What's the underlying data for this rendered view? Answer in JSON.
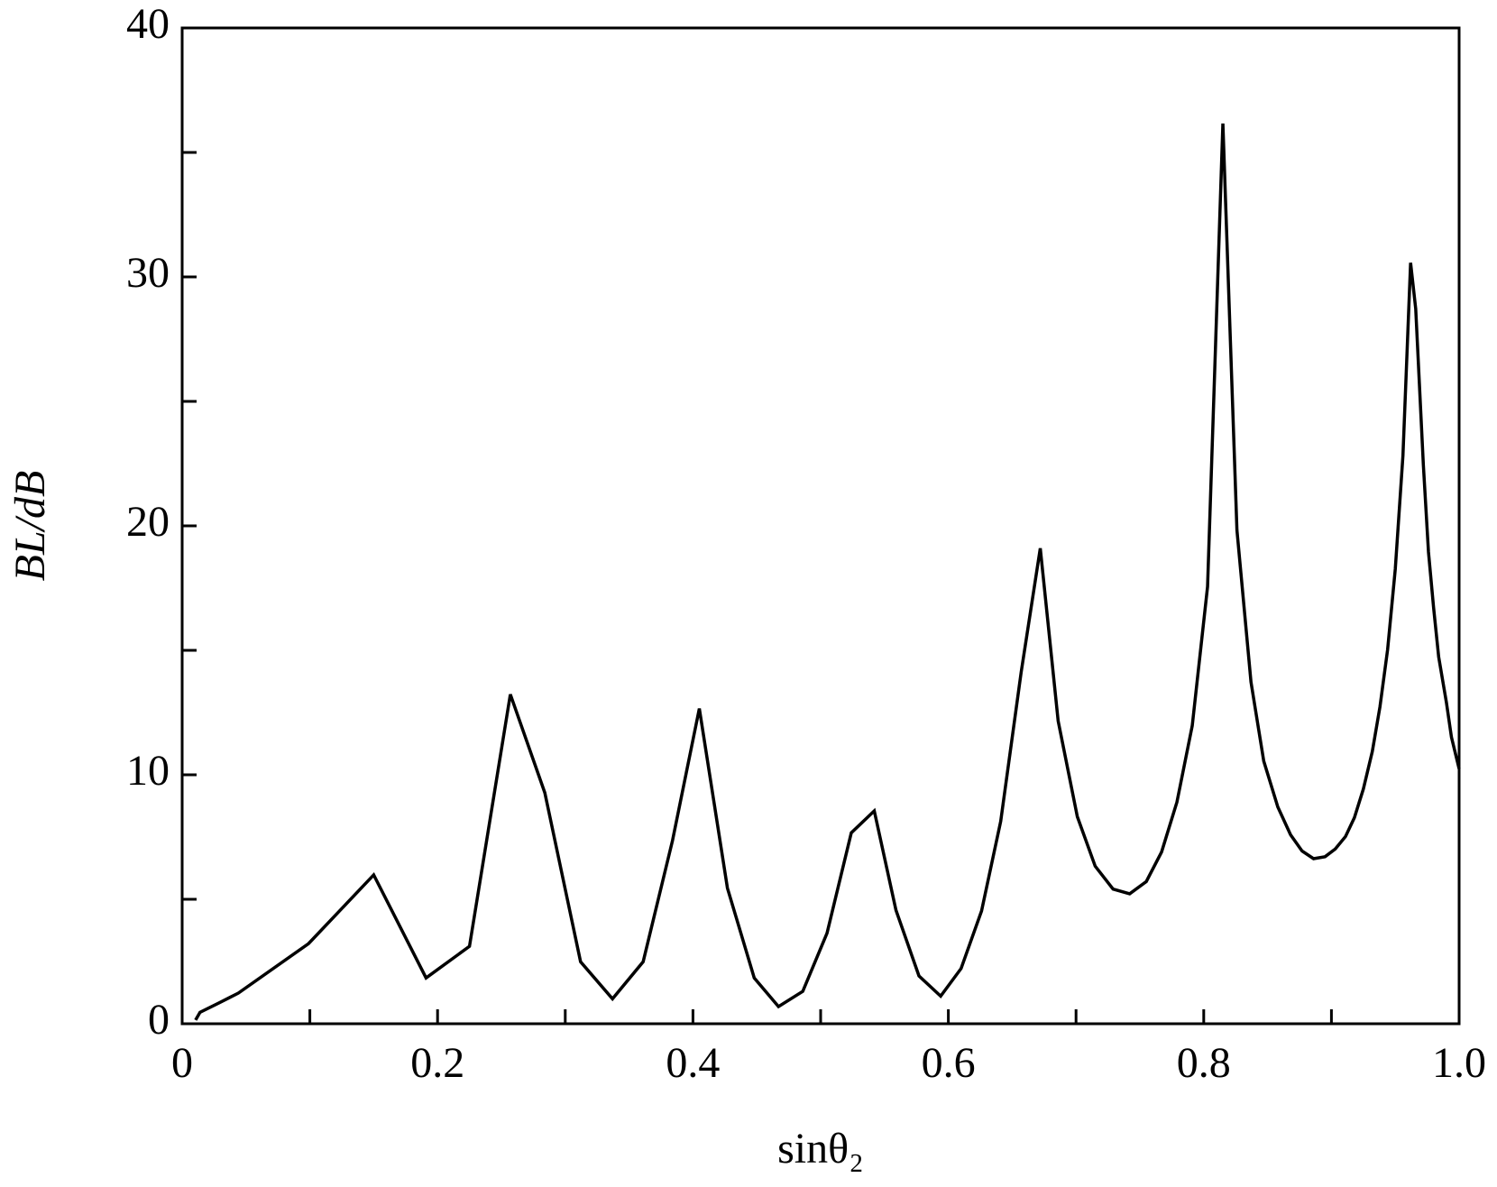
{
  "chart_data": {
    "type": "line",
    "xlabel": "sinθ₂",
    "ylabel": "BL/dB",
    "xlim": [
      0,
      1
    ],
    "ylim": [
      0,
      40
    ],
    "xticks": [
      0,
      0.2,
      0.4,
      0.6,
      0.8,
      {
        "value": 1,
        "label": "1.0"
      }
    ],
    "x_minor_ticks": [
      0.1,
      0.3,
      0.5,
      0.7,
      0.9
    ],
    "yticks": [
      0,
      10,
      20,
      30,
      40
    ],
    "y_minor_ticks": [
      5,
      15,
      25,
      35
    ],
    "grid": false,
    "series": [
      {
        "color": "#000000",
        "x": [
          0.0105,
          0.014,
          0.029,
          0.044,
          0.099,
          0.15,
          0.191,
          0.225,
          0.257,
          0.284,
          0.312,
          0.337,
          0.361,
          0.384,
          0.405,
          0.427,
          0.448,
          0.467,
          0.486,
          0.505,
          0.524,
          0.542,
          0.559,
          0.577,
          0.594,
          0.61,
          0.626,
          0.641,
          0.657,
          0.672,
          0.686,
          0.701,
          0.715,
          0.729,
          0.742,
          0.755,
          0.767,
          0.779,
          0.791,
          0.803,
          0.815,
          0.826,
          0.837,
          0.847,
          0.858,
          0.868,
          0.877,
          0.886,
          0.895,
          0.903,
          0.911,
          0.918,
          0.925,
          0.932,
          0.938,
          0.944,
          0.95,
          0.956,
          0.962,
          0.966,
          0.972,
          0.976,
          0.98,
          0.984,
          0.99,
          0.994,
          1.0
        ],
        "values": [
          0.15,
          0.46,
          0.84,
          1.23,
          3.22,
          5.98,
          1.84,
          3.11,
          13.23,
          9.28,
          2.49,
          1.0,
          2.49,
          7.36,
          12.66,
          5.45,
          1.84,
          0.69,
          1.3,
          3.64,
          7.67,
          8.55,
          4.56,
          1.92,
          1.11,
          2.22,
          4.53,
          8.13,
          14.11,
          19.1,
          12.16,
          8.32,
          6.33,
          5.41,
          5.22,
          5.71,
          6.9,
          8.9,
          11.97,
          17.56,
          36.16,
          19.83,
          13.73,
          10.55,
          8.71,
          7.59,
          6.94,
          6.63,
          6.71,
          7.02,
          7.52,
          8.28,
          9.43,
          10.93,
          12.73,
          15.03,
          18.26,
          22.82,
          30.57,
          28.72,
          22.44,
          18.95,
          16.72,
          14.73,
          12.92,
          11.51,
          10.24
        ]
      }
    ]
  }
}
